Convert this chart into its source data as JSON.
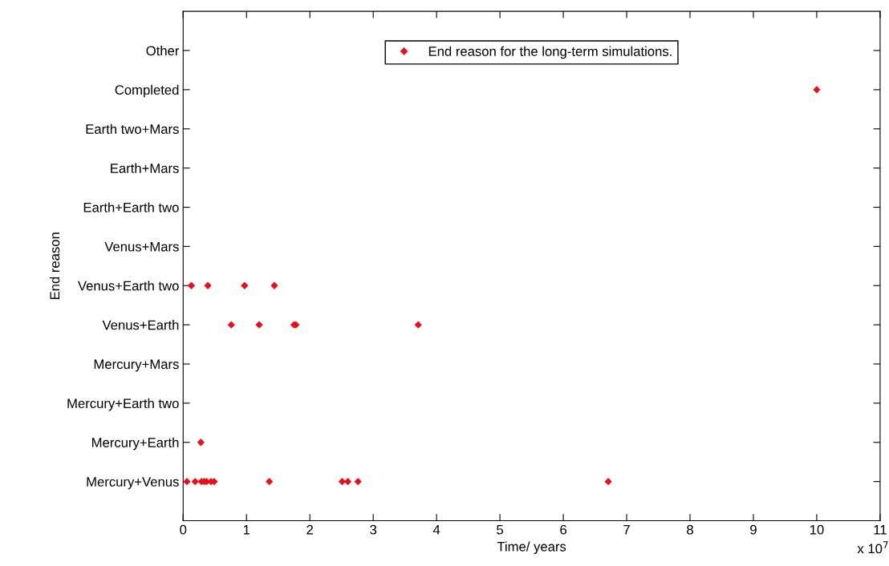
{
  "chart_data": {
    "type": "scatter",
    "orientation": "horizontal",
    "xlabel": "Time/ years",
    "ylabel": "End reason",
    "categories": [
      "Other",
      "Completed",
      "Earth two+Mars",
      "Earth+Mars",
      "Earth+Earth two",
      "Venus+Mars",
      "Venus+Earth two",
      "Venus+Earth",
      "Mercury+Mars",
      "Mercury+Earth two",
      "Mercury+Earth",
      "Mercury+Venus"
    ],
    "series": [
      {
        "name": "End reason for the long-term simulations.",
        "color": "#e8101c",
        "values": [
          null,
          10.0,
          null,
          null,
          null,
          null,
          0.13,
          0.76,
          null,
          null,
          0.28,
          0.06
        ]
      },
      {
        "color": "#e8101c",
        "values": [
          null,
          null,
          null,
          null,
          null,
          null,
          0.39,
          1.2,
          null,
          null,
          null,
          0.19
        ]
      },
      {
        "color": "#e8101c",
        "values": [
          null,
          null,
          null,
          null,
          null,
          null,
          0.97,
          1.75,
          null,
          null,
          null,
          0.29
        ]
      },
      {
        "color": "#e8101c",
        "values": [
          null,
          null,
          null,
          null,
          null,
          null,
          1.44,
          1.78,
          null,
          null,
          null,
          0.33
        ]
      },
      {
        "color": "#e8101c",
        "values": [
          null,
          null,
          null,
          null,
          null,
          null,
          null,
          3.71,
          null,
          null,
          null,
          0.37
        ]
      },
      {
        "color": "#e8101c",
        "values": [
          null,
          null,
          null,
          null,
          null,
          null,
          null,
          null,
          null,
          null,
          null,
          0.44
        ]
      },
      {
        "color": "#e8101c",
        "values": [
          null,
          null,
          null,
          null,
          null,
          null,
          null,
          null,
          null,
          null,
          null,
          0.49
        ]
      },
      {
        "color": "#e8101c",
        "values": [
          null,
          null,
          null,
          null,
          null,
          null,
          null,
          null,
          null,
          null,
          null,
          1.36
        ]
      },
      {
        "color": "#e8101c",
        "values": [
          null,
          null,
          null,
          null,
          null,
          null,
          null,
          null,
          null,
          null,
          null,
          2.51
        ]
      },
      {
        "color": "#e8101c",
        "values": [
          null,
          null,
          null,
          null,
          null,
          null,
          null,
          null,
          null,
          null,
          null,
          2.6
        ]
      },
      {
        "color": "#e8101c",
        "values": [
          null,
          null,
          null,
          null,
          null,
          null,
          null,
          null,
          null,
          null,
          null,
          2.76
        ]
      },
      {
        "color": "#e8101c",
        "values": [
          null,
          null,
          null,
          null,
          null,
          null,
          null,
          null,
          null,
          null,
          null,
          6.71
        ]
      }
    ],
    "xlim": [
      0,
      11
    ],
    "xticks": [
      0,
      1,
      2,
      3,
      4,
      5,
      6,
      7,
      8,
      9,
      10,
      11
    ],
    "annotations": [
      "x 10$^{7}$"
    ],
    "marker": "diamond",
    "grid": false,
    "legend": "top"
  }
}
